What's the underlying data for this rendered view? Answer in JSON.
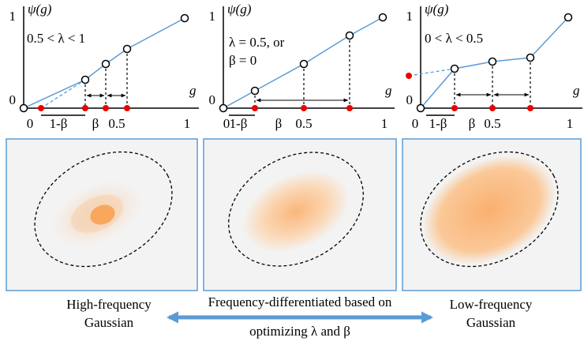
{
  "panels": [
    {
      "y_label": "ψ(g)",
      "y_ticks": [
        "1",
        "0"
      ],
      "x_label": "g",
      "x_ticks": [
        "0",
        "1-β",
        "β",
        "0.5",
        "1"
      ],
      "condition": [
        "0.5 < λ < 1"
      ]
    },
    {
      "y_label": "ψ(g)",
      "y_ticks": [
        "1",
        "0"
      ],
      "x_label": "g",
      "x_ticks": [
        "0",
        "1-β",
        "β",
        "0.5",
        "1"
      ],
      "condition": [
        "λ = 0.5, or",
        "β = 0"
      ]
    },
    {
      "y_label": "ψ(g)",
      "y_ticks": [
        "1",
        "0"
      ],
      "x_label": "g",
      "x_ticks": [
        "0",
        "1-β",
        "β",
        "0.5",
        "1"
      ],
      "condition": [
        "0 < λ < 0.5"
      ]
    }
  ],
  "caption": {
    "left": [
      "High-frequency",
      "Gaussian"
    ],
    "center": [
      "Frequency-differentiated based on",
      "optimizing λ and β"
    ],
    "right": [
      "Low-frequency",
      "Gaussian"
    ]
  }
}
